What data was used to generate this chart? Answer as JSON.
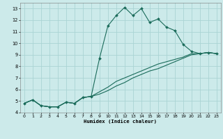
{
  "xlabel": "Humidex (Indice chaleur)",
  "bg_color": "#cceaea",
  "grid_color": "#aad4d4",
  "line_color": "#1a6b5a",
  "xlim": [
    -0.5,
    23.5
  ],
  "ylim": [
    4,
    13.5
  ],
  "xticks": [
    0,
    1,
    2,
    3,
    4,
    5,
    6,
    7,
    8,
    9,
    10,
    11,
    12,
    13,
    14,
    15,
    16,
    17,
    18,
    19,
    20,
    21,
    22,
    23
  ],
  "yticks": [
    4,
    5,
    6,
    7,
    8,
    9,
    10,
    11,
    12,
    13
  ],
  "series1_x": [
    0,
    1,
    2,
    3,
    4,
    5,
    6,
    7,
    8,
    9,
    10,
    11,
    12,
    13,
    14,
    15,
    16,
    17,
    18,
    19,
    20,
    21,
    22,
    23
  ],
  "series1_y": [
    4.8,
    5.1,
    4.6,
    4.5,
    4.5,
    4.9,
    4.8,
    5.3,
    5.4,
    8.7,
    11.5,
    12.4,
    13.1,
    12.4,
    13.0,
    11.8,
    12.1,
    11.4,
    11.1,
    9.9,
    9.3,
    9.1,
    9.2,
    9.1
  ],
  "series2_x": [
    0,
    1,
    2,
    3,
    4,
    5,
    6,
    7,
    8,
    9,
    10,
    11,
    12,
    13,
    14,
    15,
    16,
    17,
    18,
    19,
    20,
    21,
    22,
    23
  ],
  "series2_y": [
    4.8,
    5.1,
    4.6,
    4.5,
    4.5,
    4.9,
    4.8,
    5.3,
    5.4,
    5.8,
    6.2,
    6.7,
    7.0,
    7.3,
    7.6,
    7.9,
    8.2,
    8.4,
    8.6,
    8.8,
    9.1,
    9.1,
    9.2,
    9.1
  ],
  "series3_x": [
    0,
    1,
    2,
    3,
    4,
    5,
    6,
    7,
    8,
    9,
    10,
    11,
    12,
    13,
    14,
    15,
    16,
    17,
    18,
    19,
    20,
    21,
    22,
    23
  ],
  "series3_y": [
    4.8,
    5.1,
    4.6,
    4.5,
    4.5,
    4.9,
    4.8,
    5.3,
    5.4,
    5.6,
    5.9,
    6.3,
    6.6,
    7.0,
    7.3,
    7.6,
    7.8,
    8.1,
    8.4,
    8.7,
    9.0,
    9.1,
    9.2,
    9.1
  ]
}
